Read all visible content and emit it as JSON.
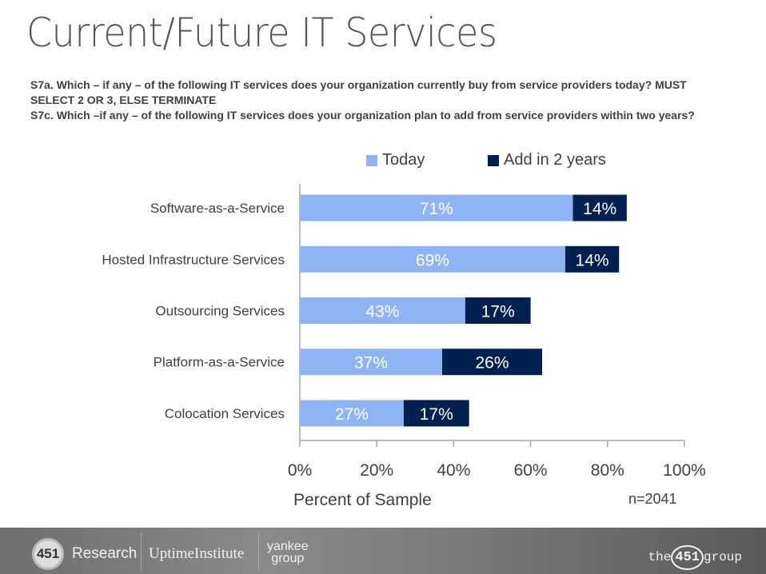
{
  "page": {
    "title": "Current/Future IT Services",
    "question_lines": [
      "S7a. Which – if any – of the following IT services does your organization currently buy from service providers today? MUST SELECT 2 OR 3, ELSE TERMINATE",
      "S7c. Which –if any – of the following IT services does your organization plan to add from service providers within two years?"
    ],
    "sample_size": "n=2041"
  },
  "footer": {
    "logo_451": "451",
    "research": "Research",
    "uptime": "UptimeInstitute",
    "yankee_line1": "yankee",
    "yankee_line2": "group",
    "the451_pre": "the",
    "the451_num": "451",
    "the451_post": "group"
  },
  "chart_data": {
    "type": "bar",
    "orientation": "horizontal",
    "stacked": true,
    "categories": [
      "Software-as-a-Service",
      "Hosted Infrastructure Services",
      "Outsourcing Services",
      "Platform-as-a-Service",
      "Colocation Services"
    ],
    "series": [
      {
        "name": "Today",
        "color": "#8FB4F5",
        "values": [
          71,
          69,
          43,
          37,
          27
        ]
      },
      {
        "name": "Add in 2 years",
        "color": "#002050",
        "values": [
          14,
          14,
          17,
          26,
          17
        ]
      }
    ],
    "data_labels": [
      [
        "71%",
        "69%",
        "43%",
        "37%",
        "27%"
      ],
      [
        "14%",
        "14%",
        "17%",
        "26%",
        "17%"
      ]
    ],
    "xlabel": "Percent of Sample",
    "ylabel": "",
    "xlim": [
      0,
      100
    ],
    "xticks": [
      "0%",
      "20%",
      "40%",
      "60%",
      "80%",
      "100%"
    ],
    "legend_position": "top",
    "grid": false
  }
}
